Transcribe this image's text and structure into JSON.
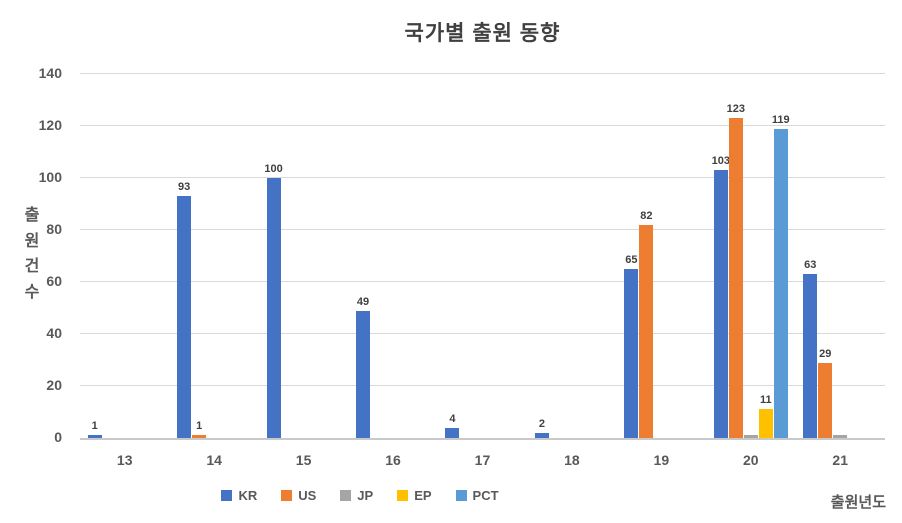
{
  "chart_data": {
    "type": "bar",
    "title": "국가별 출원 동향",
    "ylabel": "출원건수",
    "xlabel": "출원년도",
    "ylim": [
      0,
      140
    ],
    "ytick_step": 20,
    "y_ticks": [
      0,
      20,
      40,
      60,
      80,
      100,
      120,
      140
    ],
    "grid": true,
    "legend_position": "bottom",
    "categories": [
      "13",
      "14",
      "15",
      "16",
      "17",
      "18",
      "19",
      "20",
      "21"
    ],
    "series": [
      {
        "name": "KR",
        "color": "#4472C4",
        "values": [
          1,
          93,
          100,
          49,
          4,
          2,
          65,
          103,
          63
        ],
        "labels": [
          "1",
          "93",
          "100",
          "49",
          "4",
          "2",
          "65",
          "103",
          "63"
        ]
      },
      {
        "name": "US",
        "color": "#ED7D31",
        "values": [
          0,
          1,
          0,
          0,
          0,
          0,
          82,
          123,
          29
        ],
        "labels": [
          "",
          "1",
          "",
          "",
          "",
          "",
          "82",
          "123",
          "29"
        ]
      },
      {
        "name": "JP",
        "color": "#A5A5A5",
        "values": [
          0,
          0,
          0,
          0,
          0,
          0,
          0,
          1,
          1
        ],
        "labels": [
          "",
          "",
          "",
          "",
          "",
          "",
          "",
          "",
          ""
        ]
      },
      {
        "name": "EP",
        "color": "#FFC000",
        "values": [
          0,
          0,
          0,
          0,
          0,
          0,
          0,
          11,
          0
        ],
        "labels": [
          "",
          "",
          "",
          "",
          "",
          "",
          "",
          "11",
          ""
        ]
      },
      {
        "name": "PCT",
        "color": "#5B9BD5",
        "values": [
          0,
          0,
          0,
          0,
          0,
          0,
          0,
          119,
          0
        ],
        "labels": [
          "",
          "",
          "",
          "",
          "",
          "",
          "",
          "119",
          ""
        ]
      }
    ],
    "colors": {
      "title_text": "#404040",
      "axis_text": "#595959",
      "data_label_text": "#404040",
      "gridline": "#D9D9D9",
      "axis_line": "#C9C9C9",
      "background": "#FFFFFF"
    }
  }
}
